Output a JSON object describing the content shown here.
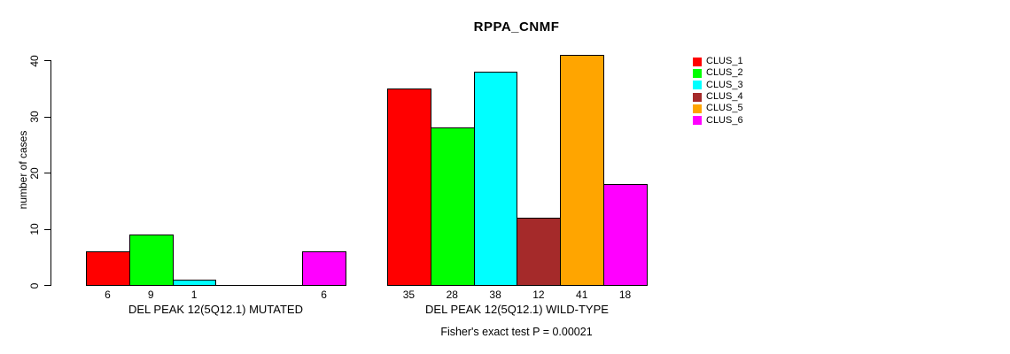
{
  "chart_data": {
    "type": "bar",
    "title": "RPPA_CNMF",
    "ylabel": "number of cases",
    "xlabel": "",
    "ylim": [
      0,
      40
    ],
    "yticks": [
      0,
      10,
      20,
      30,
      40
    ],
    "grid": false,
    "legend_position": "top-right-outside-bars",
    "legend": [
      {
        "name": "CLUS_1",
        "color": "#FF0000"
      },
      {
        "name": "CLUS_2",
        "color": "#00FF00"
      },
      {
        "name": "CLUS_3",
        "color": "#00FFFF"
      },
      {
        "name": "CLUS_4",
        "color": "#A52A2A"
      },
      {
        "name": "CLUS_5",
        "color": "#FFA500"
      },
      {
        "name": "CLUS_6",
        "color": "#FF00FF"
      }
    ],
    "series_colors": [
      "#FF0000",
      "#00FF00",
      "#00FFFF",
      "#A52A2A",
      "#FFA500",
      "#FF00FF"
    ],
    "categories": [
      "CLUS_1",
      "CLUS_2",
      "CLUS_3",
      "CLUS_4",
      "CLUS_5",
      "CLUS_6"
    ],
    "groups": [
      {
        "label": "DEL PEAK 12(5Q12.1) MUTATED",
        "values": [
          6,
          9,
          1,
          0,
          0,
          6
        ],
        "bar_labels": [
          "6",
          "9",
          "1",
          "",
          "",
          "6"
        ]
      },
      {
        "label": "DEL PEAK 12(5Q12.1) WILD-TYPE",
        "values": [
          35,
          28,
          38,
          12,
          41,
          18
        ],
        "bar_labels": [
          "35",
          "28",
          "38",
          "12",
          "41",
          "18"
        ]
      }
    ],
    "annotation": "Fisher's exact test P = 0.00021",
    "axis_color": "#000000",
    "background_color": "#FFFFFF"
  }
}
